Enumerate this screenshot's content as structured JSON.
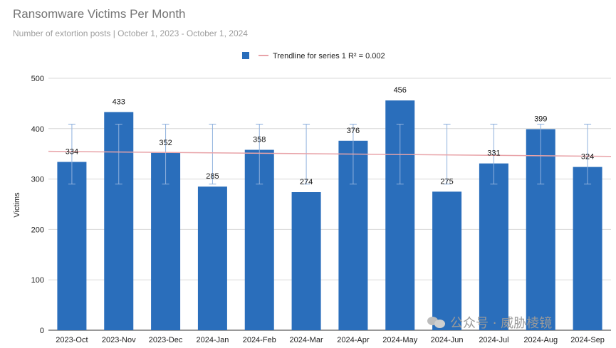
{
  "title": "Ransomware Victims Per Month",
  "subtitle": "Number of extortion posts | October 1, 2023 - October 1, 2024",
  "watermark": {
    "icon": "wechat-icon",
    "text": "公众号 · 威胁棱镜"
  },
  "chart_data": {
    "type": "bar",
    "categories": [
      "2023-Oct",
      "2023-Nov",
      "2023-Dec",
      "2024-Jan",
      "2024-Feb",
      "2024-Mar",
      "2024-Apr",
      "2024-May",
      "2024-Jun",
      "2024-Jul",
      "2024-Aug",
      "2024-Sep"
    ],
    "series": [
      {
        "values": [
          334,
          433,
          352,
          285,
          358,
          274,
          376,
          456,
          275,
          331,
          399,
          324
        ]
      }
    ],
    "error_bars": {
      "low": 290,
      "high": 409
    },
    "trendline": {
      "label": "Trendline for series 1 R² = 0.002",
      "start": 355,
      "end": 345,
      "color": "#e8a3a8"
    },
    "ylabel": "Victims",
    "xlabel": "",
    "ylim": [
      0,
      500
    ],
    "yticks": [
      0,
      100,
      200,
      300,
      400,
      500
    ],
    "bar_color": "#2a6ebb",
    "grid": true,
    "legend_position": "top-center"
  }
}
